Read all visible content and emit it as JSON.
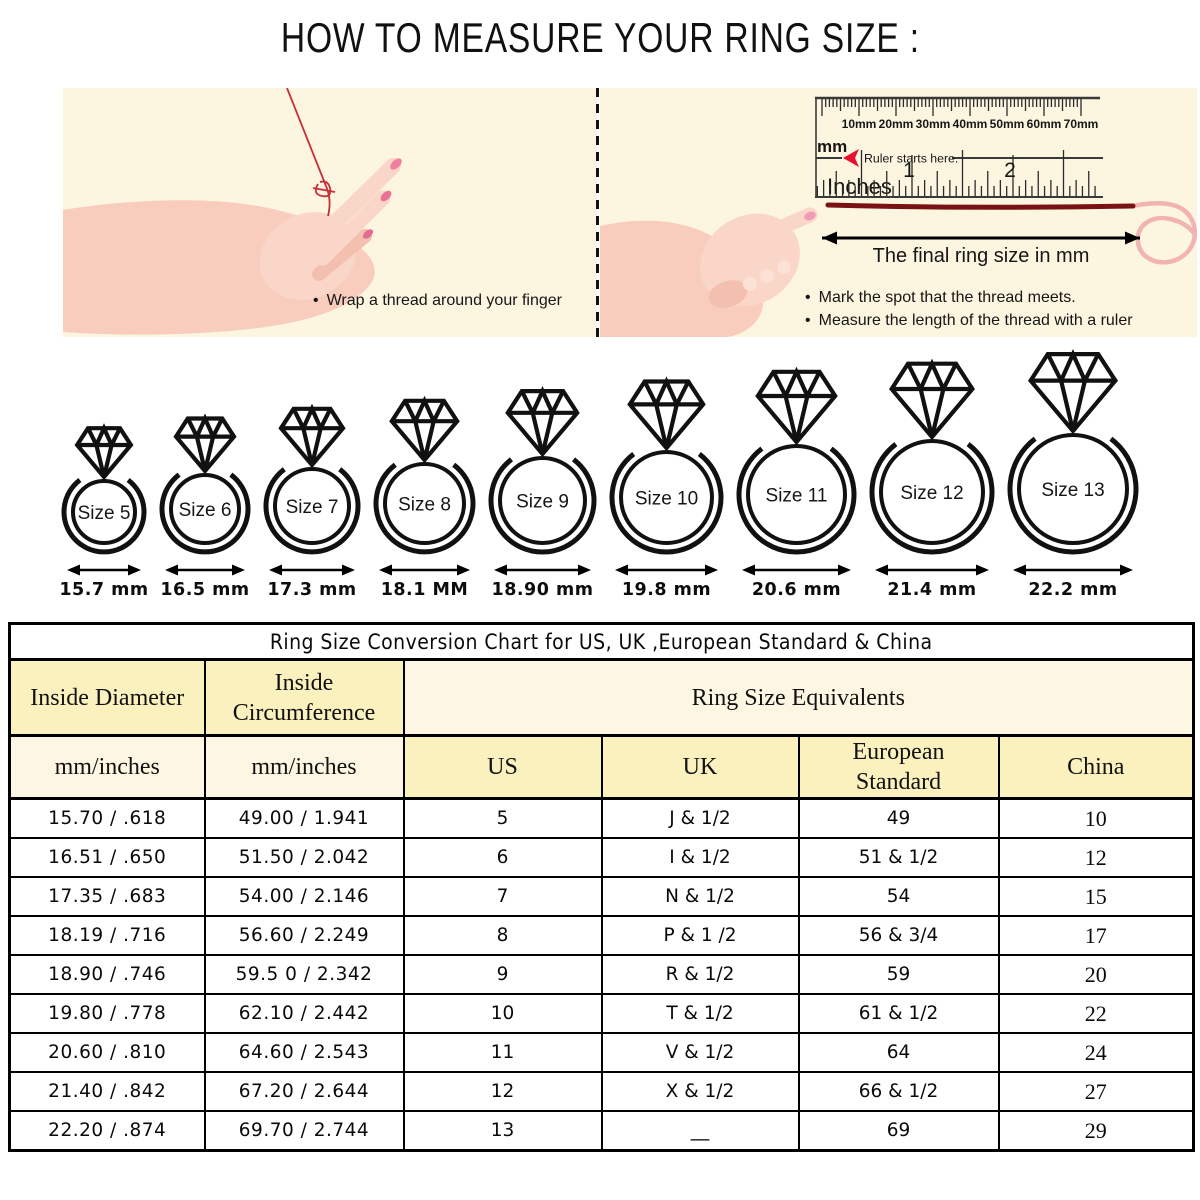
{
  "title": "HOW TO MEASURE YOUR RING SIZE :",
  "panels": {
    "left": {
      "bullet": "Wrap a thread around your finger"
    },
    "right": {
      "ruler": {
        "unit_mm": "mm",
        "mm_labels": [
          "10mm",
          "20mm",
          "30mm",
          "40mm",
          "50mm",
          "60mm",
          "70mm"
        ],
        "start_note": "Ruler starts here.",
        "inches_label": "Inches",
        "inch_labels": [
          "1",
          "2"
        ]
      },
      "arrow_label": "The final ring size in mm",
      "bullets": [
        "Mark the spot that the thread meets.",
        "Measure the length of the thread with a ruler"
      ]
    }
  },
  "rings": [
    {
      "label": "Size 5",
      "diameter": "15.7 mm"
    },
    {
      "label": "Size 6",
      "diameter": "16.5 mm"
    },
    {
      "label": "Size 7",
      "diameter": "17.3 mm"
    },
    {
      "label": "Size 8",
      "diameter": "18.1 MM"
    },
    {
      "label": "Size 9",
      "diameter": "18.90 mm"
    },
    {
      "label": "Size 10",
      "diameter": "19.8 mm"
    },
    {
      "label": "Size 11",
      "diameter": "20.6 mm"
    },
    {
      "label": "Size 12",
      "diameter": "21.4 mm"
    },
    {
      "label": "Size 13",
      "diameter": "22.2 mm"
    }
  ],
  "table": {
    "title": "Ring Size Conversion Chart for US, UK ,European Standard & China",
    "headers": {
      "col1": "Inside Diameter",
      "col2": "Inside\nCircumference",
      "group": "Ring Size Equivalents",
      "sub": [
        "mm/inches",
        "mm/inches",
        "US",
        "UK",
        "European\nStandard",
        "China"
      ]
    },
    "rows": [
      [
        "15.70 / .618",
        "49.00 / 1.941",
        "5",
        "J & 1/2",
        "49",
        "10"
      ],
      [
        "16.51 / .650",
        "51.50 / 2.042",
        "6",
        "I & 1/2",
        "51 & 1/2",
        "12"
      ],
      [
        "17.35 / .683",
        "54.00 / 2.146",
        "7",
        "N & 1/2",
        "54",
        "15"
      ],
      [
        "18.19 / .716",
        "56.60 / 2.249",
        "8",
        "P & 1 /2",
        "56 & 3/4",
        "17"
      ],
      [
        "18.90 / .746",
        "59.5 0 / 2.342",
        "9",
        "R & 1/2",
        "59",
        "20"
      ],
      [
        "19.80 / .778",
        "62.10 / 2.442",
        "10",
        "T & 1/2",
        "61 & 1/2",
        "22"
      ],
      [
        "20.60 / .810",
        "64.60 / 2.543",
        "11",
        "V & 1/2",
        "64",
        "24"
      ],
      [
        "21.40 / .842",
        "67.20 / 2.644",
        "12",
        "X & 1/2",
        "66 & 1/2",
        "27"
      ],
      [
        "22.20 / .874",
        "69.70 / 2.744",
        "13",
        "__",
        "69",
        "29"
      ]
    ]
  },
  "colors": {
    "panel_bg": "#FCF5E0",
    "header_yellow": "#FAF1BE",
    "header_cream": "#FCF6E2",
    "thread_dark": "#7A1113",
    "thread_red": "#C62F39",
    "loop_pink": "#F2B3B3",
    "marker_red": "#E8112D",
    "nail_pink": "#EE7FA0"
  }
}
